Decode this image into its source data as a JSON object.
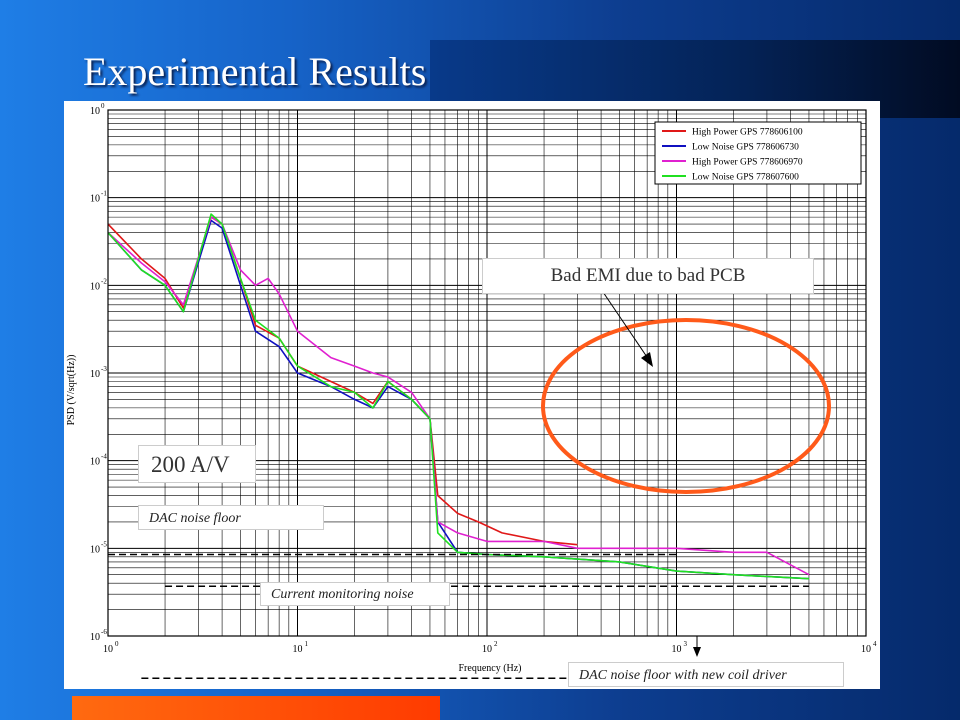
{
  "slide": {
    "title": "Experimental Results",
    "colors": {
      "background": "#1663c8",
      "accent_bar": "#ff4a00",
      "panel": "#ffffff"
    }
  },
  "chart_data": {
    "type": "line",
    "xscale": "log",
    "yscale": "log",
    "xlim": [
      1,
      10000
    ],
    "ylim": [
      1e-06,
      1
    ],
    "xlabel": "Frequency (Hz)",
    "ylabel": "PSD (V/sqrt(Hz))",
    "grid": true,
    "legend_position": "top-right",
    "x_ticks": [
      {
        "base": "10",
        "exp": "0",
        "value": 1
      },
      {
        "base": "10",
        "exp": "1",
        "value": 10
      },
      {
        "base": "10",
        "exp": "2",
        "value": 100
      },
      {
        "base": "10",
        "exp": "3",
        "value": 1000
      },
      {
        "base": "10",
        "exp": "4",
        "value": 10000
      }
    ],
    "y_ticks": [
      {
        "base": "10",
        "exp": "0",
        "value": 1
      },
      {
        "base": "10",
        "exp": "-1",
        "value": 0.1
      },
      {
        "base": "10",
        "exp": "-2",
        "value": 0.01
      },
      {
        "base": "10",
        "exp": "-3",
        "value": 0.001
      },
      {
        "base": "10",
        "exp": "-4",
        "value": 0.0001
      },
      {
        "base": "10",
        "exp": "-5",
        "value": 1e-05
      },
      {
        "base": "10",
        "exp": "-6",
        "value": 1e-06
      }
    ],
    "series": [
      {
        "name": "High Power GPS 778606100",
        "color": "#e01818",
        "points": [
          [
            1,
            0.05
          ],
          [
            1.5,
            0.02
          ],
          [
            2,
            0.012
          ],
          [
            2.5,
            0.0055
          ],
          [
            3.5,
            0.06
          ],
          [
            4,
            0.05
          ],
          [
            5,
            0.012
          ],
          [
            6,
            0.0035
          ],
          [
            8,
            0.0025
          ],
          [
            10,
            0.0012
          ],
          [
            15,
            0.0008
          ],
          [
            20,
            0.0006
          ],
          [
            25,
            0.00045
          ],
          [
            30,
            0.0008
          ],
          [
            40,
            0.0005
          ],
          [
            50,
            0.0003
          ],
          [
            55,
            4e-05
          ],
          [
            70,
            2.5e-05
          ],
          [
            90,
            2e-05
          ],
          [
            120,
            1.5e-05
          ],
          [
            200,
            1.2e-05
          ],
          [
            300,
            1.1e-05
          ]
        ]
      },
      {
        "name": "Low Noise GPS 778606730",
        "color": "#1010c0",
        "points": [
          [
            1,
            0.04
          ],
          [
            1.5,
            0.015
          ],
          [
            2,
            0.01
          ],
          [
            2.5,
            0.005
          ],
          [
            3.5,
            0.055
          ],
          [
            4,
            0.045
          ],
          [
            5,
            0.01
          ],
          [
            6,
            0.003
          ],
          [
            8,
            0.002
          ],
          [
            10,
            0.001
          ],
          [
            15,
            0.0007
          ],
          [
            20,
            0.0005
          ],
          [
            25,
            0.0004
          ],
          [
            30,
            0.0007
          ],
          [
            40,
            0.0005
          ],
          [
            50,
            0.0003
          ],
          [
            55,
            2e-05
          ],
          [
            70,
            9e-06
          ],
          [
            100,
            8.5e-06
          ],
          [
            200,
            8e-06
          ],
          [
            500,
            7e-06
          ],
          [
            1000,
            5.5e-06
          ],
          [
            2000,
            5e-06
          ],
          [
            5000,
            4.5e-06
          ]
        ]
      },
      {
        "name": "High Power GPS 778606970",
        "color": "#e020d0",
        "points": [
          [
            1,
            0.04
          ],
          [
            1.5,
            0.018
          ],
          [
            2,
            0.011
          ],
          [
            2.5,
            0.006
          ],
          [
            3.5,
            0.06
          ],
          [
            4,
            0.05
          ],
          [
            5,
            0.015
          ],
          [
            6,
            0.01
          ],
          [
            7,
            0.012
          ],
          [
            8,
            0.008
          ],
          [
            10,
            0.003
          ],
          [
            15,
            0.0015
          ],
          [
            20,
            0.0012
          ],
          [
            25,
            0.001
          ],
          [
            30,
            0.0009
          ],
          [
            40,
            0.0006
          ],
          [
            50,
            0.0003
          ],
          [
            55,
            2e-05
          ],
          [
            70,
            1.5e-05
          ],
          [
            100,
            1.2e-05
          ],
          [
            200,
            1.2e-05
          ],
          [
            300,
            1e-05
          ],
          [
            500,
            1e-05
          ],
          [
            1000,
            1e-05
          ],
          [
            2000,
            9e-06
          ],
          [
            3000,
            9e-06
          ],
          [
            5000,
            5e-06
          ]
        ]
      },
      {
        "name": "Low Noise GPS 778607600",
        "color": "#20e020",
        "points": [
          [
            1,
            0.04
          ],
          [
            1.5,
            0.015
          ],
          [
            2,
            0.01
          ],
          [
            2.5,
            0.005
          ],
          [
            3.5,
            0.065
          ],
          [
            4,
            0.05
          ],
          [
            5,
            0.012
          ],
          [
            6,
            0.004
          ],
          [
            8,
            0.0025
          ],
          [
            10,
            0.0012
          ],
          [
            15,
            0.0007
          ],
          [
            20,
            0.0006
          ],
          [
            25,
            0.0004
          ],
          [
            30,
            0.0008
          ],
          [
            40,
            0.0005
          ],
          [
            50,
            0.0003
          ],
          [
            55,
            1.5e-05
          ],
          [
            70,
            9e-06
          ],
          [
            100,
            8.5e-06
          ],
          [
            200,
            8e-06
          ],
          [
            500,
            7e-06
          ],
          [
            1000,
            5.5e-06
          ],
          [
            2000,
            5e-06
          ],
          [
            5000,
            4.5e-06
          ]
        ]
      }
    ],
    "reference_lines": [
      {
        "name": "DAC noise floor",
        "x": [
          1,
          1000
        ],
        "y": 8.5e-06
      },
      {
        "name": "Current monitoring noise",
        "x": [
          2,
          5000
        ],
        "y": 3.7e-06
      },
      {
        "name": "DAC noise floor with new coil driver",
        "x": [
          1.5,
          2000
        ],
        "y": 3.3e-07
      }
    ],
    "annotations": [
      {
        "text": "Bad EMI due to bad PCB",
        "target": [
          900,
          0.00055
        ]
      },
      {
        "text": "200 A/V"
      },
      {
        "text": "DAC noise floor"
      },
      {
        "text": "Current monitoring noise"
      },
      {
        "text": "DAC noise floor with new coil driver"
      }
    ]
  }
}
